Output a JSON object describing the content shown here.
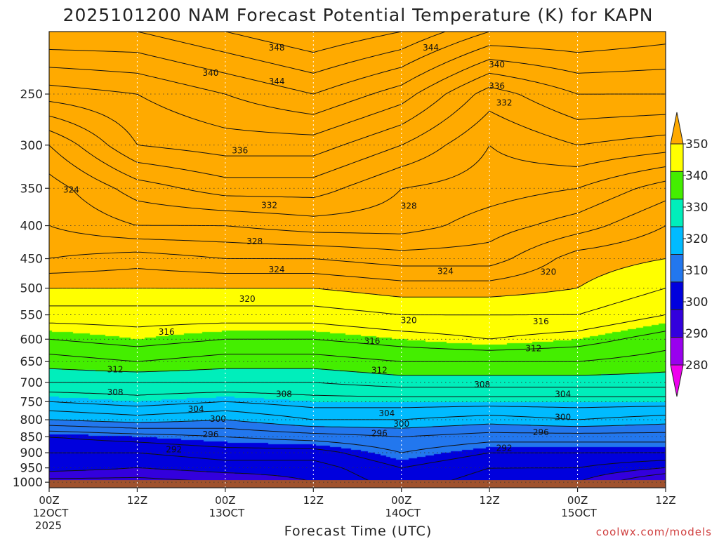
{
  "chart_data": {
    "type": "heatmap",
    "title": "2025101200 NAM Forecast Potential Temperature (K) for KAPN",
    "xlabel": "Forecast Time (UTC)",
    "ylabel": "",
    "y_scale": "log",
    "y_inverted": true,
    "ylim": [
      1020,
      200
    ],
    "y_ticks": [
      250,
      300,
      350,
      400,
      450,
      500,
      550,
      600,
      650,
      700,
      750,
      800,
      850,
      900,
      950,
      1000
    ],
    "y_tick_labels": [
      "250",
      "300",
      "350",
      "400",
      "450",
      "500",
      "550",
      "600",
      "650",
      "700",
      "750",
      "800",
      "850",
      "900",
      "950",
      "1000"
    ],
    "x_ticks": [
      0,
      12,
      24,
      36,
      48,
      60,
      72,
      84
    ],
    "x_tick_labels": [
      "00Z",
      "12Z",
      "00Z",
      "12Z",
      "00Z",
      "12Z",
      "00Z",
      "12Z"
    ],
    "x_date_labels": [
      {
        "x": 0,
        "line1": "12OCT",
        "line2": "2025"
      },
      {
        "x": 24,
        "line1": "13OCT",
        "line2": ""
      },
      {
        "x": 48,
        "line1": "14OCT",
        "line2": ""
      },
      {
        "x": 72,
        "line1": "15OCT",
        "line2": ""
      }
    ],
    "grid": true,
    "colorbar": {
      "placement": "right",
      "levels": [
        280,
        290,
        300,
        310,
        320,
        330,
        340,
        350
      ],
      "labels": [
        "280",
        "290",
        "300",
        "310",
        "320",
        "330",
        "340",
        "350"
      ],
      "colors": [
        "#ee00ee",
        "#9900ee",
        "#3300dd",
        "#0000dd",
        "#2277ee",
        "#00bbff",
        "#00eebb",
        "#44ee00",
        "#ffff00",
        "#ffaa00"
      ]
    },
    "ground_color": "#a0522d",
    "contour_levels": [
      288,
      290,
      292,
      294,
      296,
      298,
      300,
      302,
      304,
      306,
      308,
      310,
      312,
      314,
      316,
      318,
      320,
      322,
      324,
      326,
      328,
      330,
      332,
      334,
      336,
      338,
      340,
      342,
      344,
      346,
      348
    ],
    "profiles": [
      {
        "x": 0,
        "levels": [
          [
            1000,
            287
          ],
          [
            950,
            291
          ],
          [
            900,
            292
          ],
          [
            850,
            294
          ],
          [
            800,
            300
          ],
          [
            750,
            304
          ],
          [
            700,
            308
          ],
          [
            650,
            311
          ],
          [
            600,
            314
          ],
          [
            550,
            317
          ],
          [
            500,
            320
          ],
          [
            450,
            324
          ],
          [
            400,
            326
          ],
          [
            350,
            327
          ],
          [
            300,
            330
          ],
          [
            250,
            337
          ],
          [
            200,
            344
          ]
        ]
      },
      {
        "x": 12,
        "levels": [
          [
            1000,
            287
          ],
          [
            950,
            290
          ],
          [
            900,
            292
          ],
          [
            850,
            295
          ],
          [
            800,
            301
          ],
          [
            750,
            305
          ],
          [
            700,
            308
          ],
          [
            650,
            312
          ],
          [
            600,
            315
          ],
          [
            550,
            317
          ],
          [
            500,
            320
          ],
          [
            450,
            323
          ],
          [
            400,
            328
          ],
          [
            350,
            331
          ],
          [
            300,
            336
          ],
          [
            250,
            338
          ],
          [
            200,
            344
          ]
        ]
      },
      {
        "x": 24,
        "levels": [
          [
            1000,
            288
          ],
          [
            950,
            291
          ],
          [
            900,
            293
          ],
          [
            850,
            296
          ],
          [
            800,
            300
          ],
          [
            750,
            304
          ],
          [
            700,
            308
          ],
          [
            650,
            311
          ],
          [
            600,
            314
          ],
          [
            550,
            317
          ],
          [
            500,
            320
          ],
          [
            450,
            324
          ],
          [
            400,
            328
          ],
          [
            350,
            333
          ],
          [
            300,
            337
          ],
          [
            250,
            340
          ],
          [
            200,
            346
          ]
        ]
      },
      {
        "x": 36,
        "levels": [
          [
            1000,
            290
          ],
          [
            950,
            291
          ],
          [
            900,
            293
          ],
          [
            850,
            297
          ],
          [
            800,
            302
          ],
          [
            750,
            305
          ],
          [
            700,
            308
          ],
          [
            650,
            311
          ],
          [
            600,
            314
          ],
          [
            550,
            317
          ],
          [
            500,
            320
          ],
          [
            450,
            324
          ],
          [
            400,
            329
          ],
          [
            350,
            333
          ],
          [
            300,
            337
          ],
          [
            250,
            342
          ],
          [
            200,
            348
          ]
        ]
      },
      {
        "x": 48,
        "levels": [
          [
            1000,
            293
          ],
          [
            950,
            294
          ],
          [
            900,
            296
          ],
          [
            850,
            298
          ],
          [
            800,
            302
          ],
          [
            750,
            305
          ],
          [
            700,
            309
          ],
          [
            650,
            312
          ],
          [
            600,
            315
          ],
          [
            550,
            318
          ],
          [
            500,
            321
          ],
          [
            450,
            325
          ],
          [
            400,
            329
          ],
          [
            350,
            330
          ],
          [
            300,
            334
          ],
          [
            250,
            339
          ],
          [
            200,
            346
          ]
        ]
      },
      {
        "x": 60,
        "levels": [
          [
            1000,
            291
          ],
          [
            950,
            292
          ],
          [
            900,
            294
          ],
          [
            850,
            297
          ],
          [
            800,
            301
          ],
          [
            750,
            305
          ],
          [
            700,
            309
          ],
          [
            650,
            312
          ],
          [
            600,
            316
          ],
          [
            550,
            318
          ],
          [
            500,
            321
          ],
          [
            450,
            325
          ],
          [
            400,
            327
          ],
          [
            350,
            329
          ],
          [
            300,
            330
          ],
          [
            250,
            333
          ],
          [
            200,
            342
          ]
        ]
      },
      {
        "x": 72,
        "levels": [
          [
            1000,
            290
          ],
          [
            950,
            292
          ],
          [
            900,
            294
          ],
          [
            850,
            297
          ],
          [
            800,
            302
          ],
          [
            750,
            305
          ],
          [
            700,
            309
          ],
          [
            650,
            312
          ],
          [
            600,
            315
          ],
          [
            550,
            318
          ],
          [
            500,
            320
          ],
          [
            450,
            321
          ],
          [
            400,
            325
          ],
          [
            350,
            328
          ],
          [
            300,
            332
          ],
          [
            250,
            336
          ],
          [
            200,
            342
          ]
        ]
      },
      {
        "x": 84,
        "levels": [
          [
            1000,
            285
          ],
          [
            950,
            290
          ],
          [
            900,
            294
          ],
          [
            850,
            297
          ],
          [
            800,
            301
          ],
          [
            750,
            305
          ],
          [
            700,
            309
          ],
          [
            650,
            311
          ],
          [
            600,
            313
          ],
          [
            550,
            316
          ],
          [
            500,
            318
          ],
          [
            450,
            320
          ],
          [
            400,
            322
          ],
          [
            350,
            325
          ],
          [
            300,
            331
          ],
          [
            250,
            336
          ],
          [
            200,
            341
          ]
        ]
      }
    ],
    "contour_labels": [
      {
        "x": 3,
        "p": 352,
        "text": "324"
      },
      {
        "x": 22,
        "p": 232,
        "text": "340"
      },
      {
        "x": 31,
        "p": 212,
        "text": "348"
      },
      {
        "x": 31,
        "p": 239,
        "text": "344"
      },
      {
        "x": 52,
        "p": 212,
        "text": "344"
      },
      {
        "x": 61,
        "p": 225,
        "text": "340"
      },
      {
        "x": 61,
        "p": 243,
        "text": "336"
      },
      {
        "x": 62,
        "p": 258,
        "text": "332"
      },
      {
        "x": 26,
        "p": 306,
        "text": "336"
      },
      {
        "x": 30,
        "p": 372,
        "text": "332"
      },
      {
        "x": 49,
        "p": 373,
        "text": "328"
      },
      {
        "x": 28,
        "p": 423,
        "text": "328"
      },
      {
        "x": 31,
        "p": 468,
        "text": "324"
      },
      {
        "x": 54,
        "p": 471,
        "text": "324"
      },
      {
        "x": 68,
        "p": 472,
        "text": "320"
      },
      {
        "x": 27,
        "p": 520,
        "text": "320"
      },
      {
        "x": 49,
        "p": 561,
        "text": "320"
      },
      {
        "x": 16,
        "p": 585,
        "text": "316"
      },
      {
        "x": 44,
        "p": 604,
        "text": "316"
      },
      {
        "x": 67,
        "p": 563,
        "text": "316"
      },
      {
        "x": 66,
        "p": 620,
        "text": "312"
      },
      {
        "x": 9,
        "p": 669,
        "text": "312"
      },
      {
        "x": 45,
        "p": 670,
        "text": "312"
      },
      {
        "x": 59,
        "p": 706,
        "text": "308"
      },
      {
        "x": 9,
        "p": 725,
        "text": "308"
      },
      {
        "x": 32,
        "p": 730,
        "text": "308"
      },
      {
        "x": 70,
        "p": 730,
        "text": "304"
      },
      {
        "x": 20,
        "p": 770,
        "text": "304"
      },
      {
        "x": 46,
        "p": 782,
        "text": "304"
      },
      {
        "x": 23,
        "p": 798,
        "text": "300"
      },
      {
        "x": 48,
        "p": 812,
        "text": "300"
      },
      {
        "x": 70,
        "p": 793,
        "text": "300"
      },
      {
        "x": 22,
        "p": 843,
        "text": "296"
      },
      {
        "x": 45,
        "p": 840,
        "text": "296"
      },
      {
        "x": 67,
        "p": 837,
        "text": "296"
      },
      {
        "x": 17,
        "p": 890,
        "text": "292"
      },
      {
        "x": 62,
        "p": 885,
        "text": "292"
      }
    ],
    "credit": "coolwx.com/models"
  }
}
